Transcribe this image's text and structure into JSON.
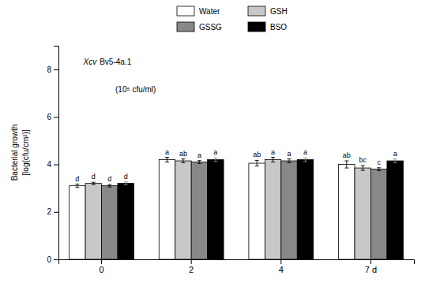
{
  "chart_data": {
    "type": "bar",
    "categories": [
      "0",
      "2",
      "4",
      "7 d"
    ],
    "series": [
      {
        "name": "Water",
        "color": "white",
        "values": [
          3.1,
          4.2,
          4.05,
          4.0
        ],
        "errors": [
          0.07,
          0.1,
          0.12,
          0.15
        ],
        "sig_labels": [
          "d",
          "a",
          "ab",
          "ab"
        ]
      },
      {
        "name": "GSH",
        "color": "#c8c8c8",
        "values": [
          3.2,
          4.15,
          4.2,
          3.85
        ],
        "errors": [
          0.05,
          0.08,
          0.1,
          0.1
        ],
        "sig_labels": [
          "d",
          "ab",
          "a",
          "bc"
        ]
      },
      {
        "name": "GSSG",
        "color": "#888888",
        "values": [
          3.1,
          4.1,
          4.15,
          3.8
        ],
        "errors": [
          0.05,
          0.06,
          0.08,
          0.06
        ],
        "sig_labels": [
          "d",
          "a",
          "a",
          "c"
        ]
      },
      {
        "name": "BSO",
        "color": "#000000",
        "values": [
          3.2,
          4.2,
          4.2,
          4.15
        ],
        "errors": [
          0.06,
          0.07,
          0.08,
          0.08
        ],
        "sig_labels": [
          "d",
          "a",
          "a",
          "a"
        ]
      }
    ],
    "ylabel": [
      "Bacterial growth",
      "[log(cfu/cm²)]"
    ],
    "annotations": [
      "Xcv",
      "Bv5-4a.1",
      "(10⁵ cfu/ml)"
    ],
    "ylim": [
      0,
      9
    ],
    "yticks": [
      0,
      2,
      4,
      6,
      8
    ],
    "grid": false,
    "legend": "top"
  }
}
